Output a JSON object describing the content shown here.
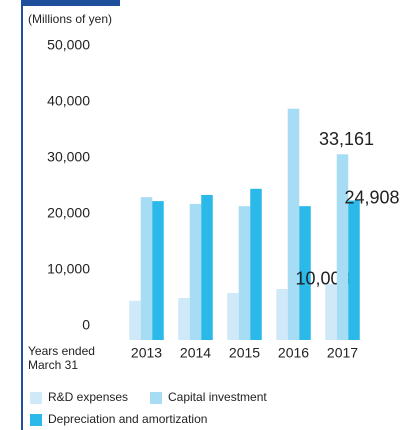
{
  "chart_data": {
    "type": "bar",
    "unit_label": "(Millions of yen)",
    "xlabel": [
      "Years ended",
      "March 31"
    ],
    "categories": [
      "2013",
      "2014",
      "2015",
      "2016",
      "2017"
    ],
    "series": [
      {
        "name": "R&D expenses",
        "color": "#cfe9f8",
        "values": [
          7000,
          7500,
          8400,
          9100,
          10008
        ],
        "value_labels": [
          null,
          null,
          null,
          null,
          "10,008"
        ]
      },
      {
        "name": "Capital investment",
        "color": "#a6dcf4",
        "values": [
          25500,
          24300,
          23900,
          41300,
          33161
        ],
        "value_labels": [
          null,
          null,
          null,
          null,
          "33,161"
        ]
      },
      {
        "name": "Depreciation and amortization",
        "color": "#2bb9e9",
        "values": [
          24800,
          25900,
          27000,
          23900,
          24908
        ],
        "value_labels": [
          null,
          null,
          null,
          null,
          "24,908"
        ]
      }
    ],
    "ylim": [
      0,
      50000
    ],
    "yticks": [
      0,
      {
        "value": 10000,
        "label": "10,000"
      },
      {
        "value": 20000,
        "label": "20,000"
      },
      {
        "value": 30000,
        "label": "30,000"
      },
      {
        "value": 40000,
        "label": "40,000"
      },
      {
        "value": 50000,
        "label": "50,000"
      }
    ]
  }
}
